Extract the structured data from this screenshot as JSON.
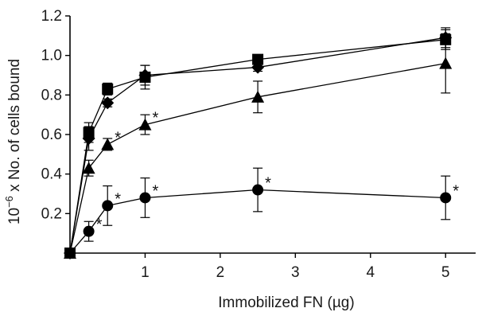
{
  "chart_data": {
    "type": "line",
    "title": "",
    "xlabel": "Immobilized FN (µg)",
    "ylabel_parts": [
      "10",
      "−6",
      " x No. of cells bound"
    ],
    "xlim": [
      0,
      5.4
    ],
    "ylim": [
      0,
      1.2
    ],
    "x_ticks": [
      1,
      2,
      3,
      4,
      5
    ],
    "y_ticks": [
      0.2,
      0.4,
      0.6,
      0.8,
      1.0,
      1.2
    ],
    "y_tick_labels": [
      "0.2",
      "0.4",
      "0.6",
      "0.8",
      "1.0",
      "1.2"
    ],
    "x_tick_labels": [
      "1",
      "2",
      "3",
      "4",
      "5"
    ],
    "grid": false,
    "marker_color": "#000000",
    "series": [
      {
        "marker": "square",
        "x": [
          0,
          0.25,
          0.5,
          1,
          2.5,
          5
        ],
        "y": [
          0,
          0.61,
          0.83,
          0.89,
          0.98,
          1.08
        ],
        "err": [
          0,
          0.05,
          0.03,
          0.06,
          0.02,
          0.05
        ],
        "stars": [
          false,
          false,
          false,
          false,
          false,
          false
        ]
      },
      {
        "marker": "diamond",
        "x": [
          0,
          0.25,
          0.5,
          1,
          2.5,
          5
        ],
        "y": [
          0,
          0.58,
          0.76,
          0.9,
          0.94,
          1.09
        ],
        "err": [
          0,
          0.06,
          0.02,
          0.05,
          0.02,
          0.05
        ],
        "stars": [
          false,
          false,
          false,
          false,
          false,
          false
        ]
      },
      {
        "marker": "triangle",
        "x": [
          0,
          0.25,
          0.5,
          1,
          2.5,
          5
        ],
        "y": [
          0,
          0.43,
          0.55,
          0.65,
          0.79,
          0.96
        ],
        "err": [
          0,
          0.04,
          0.03,
          0.05,
          0.08,
          0.15
        ],
        "stars": [
          false,
          false,
          true,
          true,
          false,
          false
        ]
      },
      {
        "marker": "circle",
        "x": [
          0,
          0.25,
          0.5,
          1,
          2.5,
          5
        ],
        "y": [
          0,
          0.11,
          0.24,
          0.28,
          0.32,
          0.28
        ],
        "err": [
          0,
          0.05,
          0.1,
          0.1,
          0.11,
          0.11
        ],
        "stars": [
          false,
          true,
          true,
          true,
          true,
          true
        ]
      }
    ],
    "star_symbol": "*"
  }
}
